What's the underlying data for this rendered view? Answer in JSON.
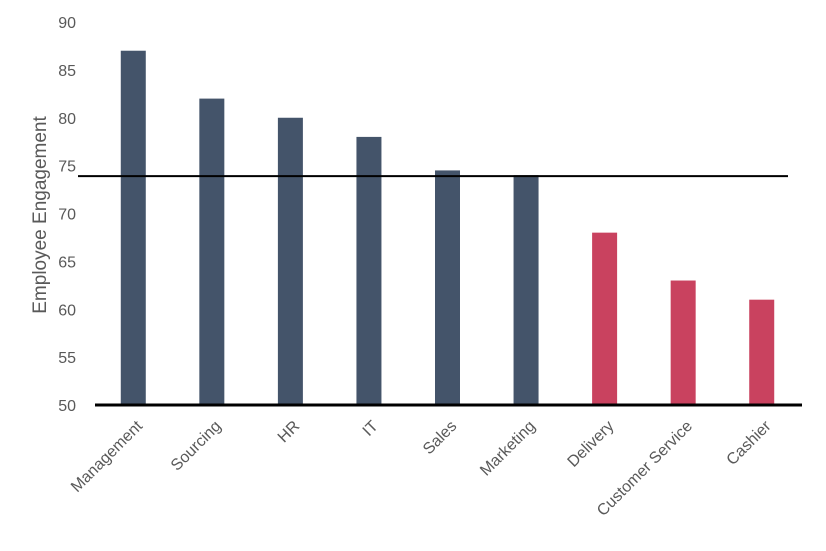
{
  "chart_data": {
    "type": "bar",
    "title": "",
    "xlabel": "",
    "ylabel": "Employee Engagement",
    "ylim": [
      50,
      90
    ],
    "yticks": [
      50,
      55,
      60,
      65,
      70,
      75,
      80,
      85,
      90
    ],
    "grid": false,
    "categories": [
      "Management",
      "Sourcing",
      "HR",
      "IT",
      "Sales",
      "Marketing",
      "Delivery",
      "Customer Service",
      "Cashier"
    ],
    "values": [
      87,
      82,
      80,
      78,
      74.5,
      74,
      68,
      63,
      61
    ],
    "bar_colors": [
      "#44546a",
      "#44546a",
      "#44546a",
      "#44546a",
      "#44546a",
      "#44546a",
      "#c9425f",
      "#c9425f",
      "#c9425f"
    ],
    "reference_line": {
      "value": 73.9,
      "color": "#000000"
    }
  }
}
